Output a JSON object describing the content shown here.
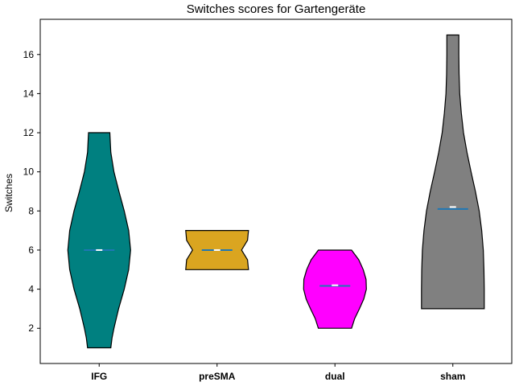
{
  "chart_data": {
    "type": "violin",
    "title": "Switches scores for Gartengeräte",
    "xlabel": "",
    "ylabel": "Switches",
    "ylim": [
      0.2,
      17.8
    ],
    "yticks": [
      2,
      4,
      6,
      8,
      10,
      12,
      14,
      16
    ],
    "categories": [
      "IFG",
      "preSMA",
      "dual",
      "sham"
    ],
    "series": [
      {
        "name": "IFG",
        "color": "#008080",
        "min": 1,
        "max": 12,
        "mean": 6.0,
        "median": 6.0,
        "density_profile": [
          {
            "y": 1,
            "w": 0.37
          },
          {
            "y": 1.5,
            "w": 0.41
          },
          {
            "y": 2,
            "w": 0.47
          },
          {
            "y": 3,
            "w": 0.62
          },
          {
            "y": 4,
            "w": 0.8
          },
          {
            "y": 5,
            "w": 0.94
          },
          {
            "y": 6,
            "w": 1.0
          },
          {
            "y": 7,
            "w": 0.94
          },
          {
            "y": 8,
            "w": 0.8
          },
          {
            "y": 9,
            "w": 0.63
          },
          {
            "y": 10,
            "w": 0.47
          },
          {
            "y": 11,
            "w": 0.37
          },
          {
            "y": 12,
            "w": 0.34
          }
        ]
      },
      {
        "name": "preSMA",
        "color": "#DAA520",
        "min": 5,
        "max": 7,
        "mean": 6.0,
        "median": 6.0,
        "density_profile": [
          {
            "y": 5,
            "w": 1.0
          },
          {
            "y": 5.5,
            "w": 0.97
          },
          {
            "y": 6,
            "w": 0.78
          },
          {
            "y": 6.5,
            "w": 0.97
          },
          {
            "y": 7,
            "w": 1.0
          }
        ]
      },
      {
        "name": "dual",
        "color": "#FF00FF",
        "min": 2,
        "max": 6,
        "mean": 4.17,
        "median": 4.2,
        "density_profile": [
          {
            "y": 2,
            "w": 0.53
          },
          {
            "y": 2.5,
            "w": 0.63
          },
          {
            "y": 3,
            "w": 0.78
          },
          {
            "y": 3.5,
            "w": 0.92
          },
          {
            "y": 4,
            "w": 1.0
          },
          {
            "y": 4.5,
            "w": 0.99
          },
          {
            "y": 5,
            "w": 0.9
          },
          {
            "y": 5.5,
            "w": 0.76
          },
          {
            "y": 6,
            "w": 0.53
          }
        ]
      },
      {
        "name": "sham",
        "color": "#808080",
        "min": 3,
        "max": 17,
        "mean": 8.1,
        "median": 8.2,
        "density_profile": [
          {
            "y": 3,
            "w": 1.0
          },
          {
            "y": 4,
            "w": 1.0
          },
          {
            "y": 5,
            "w": 0.99
          },
          {
            "y": 6,
            "w": 0.97
          },
          {
            "y": 7,
            "w": 0.92
          },
          {
            "y": 8,
            "w": 0.84
          },
          {
            "y": 9,
            "w": 0.72
          },
          {
            "y": 10,
            "w": 0.58
          },
          {
            "y": 11,
            "w": 0.45
          },
          {
            "y": 12,
            "w": 0.34
          },
          {
            "y": 13,
            "w": 0.27
          },
          {
            "y": 14,
            "w": 0.22
          },
          {
            "y": 15,
            "w": 0.2
          },
          {
            "y": 16,
            "w": 0.19
          },
          {
            "y": 17,
            "w": 0.19
          }
        ]
      }
    ],
    "colors": {
      "mean_line": "#1F77B4",
      "median_marker": "#FFFFFF",
      "outline": "#000000"
    }
  }
}
